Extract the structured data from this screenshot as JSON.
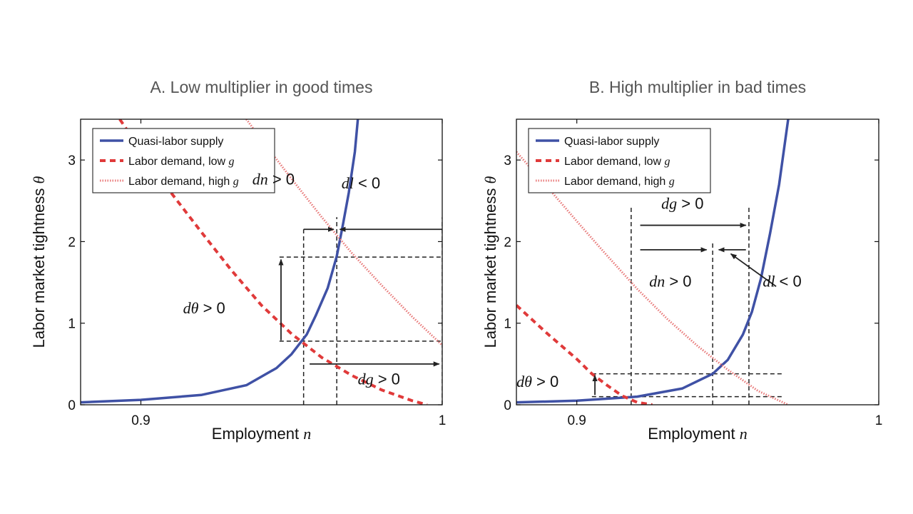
{
  "colors": {
    "supply": "#3f51a5",
    "demand_low": "#e03a3a",
    "demand_high": "#e87a7a",
    "guide": "#222222"
  },
  "chart_data": [
    {
      "type": "line",
      "title": "A. Low multiplier in good times",
      "xlabel": "Employment",
      "xlabel_var": "n",
      "ylabel": "Labor market tightness",
      "ylabel_var": "θ",
      "xlim": [
        0.88,
        1.0
      ],
      "ylim": [
        0,
        3.5
      ],
      "xticks": [
        0.9,
        1
      ],
      "xtick_labels": [
        "0.9",
        "1"
      ],
      "yticks": [
        0,
        1,
        2,
        3
      ],
      "ytick_labels": [
        "0",
        "1",
        "2",
        "3"
      ],
      "legend": {
        "position": "top-left",
        "entries": [
          {
            "text": "Quasi-labor supply",
            "var": "",
            "style": "solid"
          },
          {
            "text": "Labor demand, low ",
            "var": "g",
            "style": "dashed"
          },
          {
            "text": "Labor demand, high ",
            "var": "g",
            "style": "dotted"
          }
        ]
      },
      "series": [
        {
          "id": "supply",
          "points": [
            [
              0.88,
              0.03
            ],
            [
              0.9,
              0.06
            ],
            [
              0.92,
              0.12
            ],
            [
              0.935,
              0.24
            ],
            [
              0.945,
              0.45
            ],
            [
              0.95,
              0.62
            ],
            [
              0.955,
              0.86
            ],
            [
              0.958,
              1.09
            ],
            [
              0.962,
              1.43
            ],
            [
              0.965,
              1.82
            ],
            [
              0.967,
              2.2
            ],
            [
              0.969,
              2.6
            ],
            [
              0.971,
              3.1
            ],
            [
              0.972,
              3.5
            ]
          ]
        },
        {
          "id": "demand_low",
          "points": [
            [
              0.893,
              3.5
            ],
            [
              0.9,
              3.12
            ],
            [
              0.91,
              2.6
            ],
            [
              0.92,
              2.12
            ],
            [
              0.93,
              1.65
            ],
            [
              0.94,
              1.22
            ],
            [
              0.95,
              0.87
            ],
            [
              0.96,
              0.58
            ],
            [
              0.97,
              0.36
            ],
            [
              0.98,
              0.18
            ],
            [
              0.99,
              0.05
            ],
            [
              0.995,
              0.0
            ]
          ]
        },
        {
          "id": "demand_high",
          "points": [
            [
              0.935,
              3.5
            ],
            [
              0.94,
              3.25
            ],
            [
              0.95,
              2.77
            ],
            [
              0.96,
              2.3
            ],
            [
              0.97,
              1.86
            ],
            [
              0.98,
              1.46
            ],
            [
              0.99,
              1.08
            ],
            [
              1.0,
              0.73
            ]
          ]
        }
      ],
      "guides": [
        {
          "type": "v",
          "x": 0.954,
          "y0": 0,
          "y1": 2.15
        },
        {
          "type": "v",
          "x": 0.965,
          "y0": 0,
          "y1": 2.3
        },
        {
          "type": "v",
          "x": 1.0,
          "y0": 0,
          "y1": 2.3
        },
        {
          "type": "h",
          "y": 1.81,
          "x0": 0.946,
          "x1": 1.0
        },
        {
          "type": "h",
          "y": 0.78,
          "x0": 0.946,
          "x1": 1.0
        }
      ],
      "arrows": [
        {
          "x0": 0.954,
          "y0": 2.15,
          "x1": 0.964,
          "y1": 2.15
        },
        {
          "x0": 1.0,
          "y0": 2.15,
          "x1": 0.966,
          "y1": 2.15
        },
        {
          "x0": 0.9465,
          "y0": 0.79,
          "x1": 0.9465,
          "y1": 1.78
        },
        {
          "x0": 0.956,
          "y0": 0.5,
          "x1": 0.999,
          "y1": 0.5
        }
      ],
      "annotations": [
        {
          "var": "dn",
          "rel": " > 0",
          "x": 0.944,
          "y": 2.7
        },
        {
          "var": "dl",
          "rel": " < 0",
          "x": 0.973,
          "y": 2.65
        },
        {
          "var": "dθ",
          "rel": " > 0",
          "x": 0.921,
          "y": 1.12
        },
        {
          "var": "dg",
          "rel": " > 0",
          "x": 0.979,
          "y": 0.25
        }
      ]
    },
    {
      "type": "line",
      "title": "B. High multiplier in bad times",
      "xlabel": "Employment",
      "xlabel_var": "n",
      "ylabel": "Labor market tightness",
      "ylabel_var": "θ",
      "xlim": [
        0.88,
        1.0
      ],
      "ylim": [
        0,
        3.5
      ],
      "xticks": [
        0.9,
        1
      ],
      "xtick_labels": [
        "0.9",
        "1"
      ],
      "yticks": [
        0,
        1,
        2,
        3
      ],
      "ytick_labels": [
        "0",
        "1",
        "2",
        "3"
      ],
      "legend": {
        "position": "top-left",
        "entries": [
          {
            "text": "Quasi-labor supply",
            "var": "",
            "style": "solid"
          },
          {
            "text": "Labor demand, low ",
            "var": "g",
            "style": "dashed"
          },
          {
            "text": "Labor demand, high ",
            "var": "g",
            "style": "dotted"
          }
        ]
      },
      "series": [
        {
          "id": "supply",
          "points": [
            [
              0.88,
              0.03
            ],
            [
              0.9,
              0.05
            ],
            [
              0.92,
              0.1
            ],
            [
              0.935,
              0.2
            ],
            [
              0.945,
              0.38
            ],
            [
              0.95,
              0.55
            ],
            [
              0.955,
              0.86
            ],
            [
              0.958,
              1.14
            ],
            [
              0.961,
              1.55
            ],
            [
              0.964,
              2.1
            ],
            [
              0.967,
              2.7
            ],
            [
              0.97,
              3.5
            ]
          ]
        },
        {
          "id": "demand_low",
          "points": [
            [
              0.88,
              1.22
            ],
            [
              0.89,
              0.88
            ],
            [
              0.9,
              0.56
            ],
            [
              0.905,
              0.38
            ],
            [
              0.91,
              0.24
            ],
            [
              0.915,
              0.11
            ],
            [
              0.92,
              0.03
            ],
            [
              0.925,
              0.0
            ]
          ]
        },
        {
          "id": "demand_high",
          "points": [
            [
              0.88,
              3.1
            ],
            [
              0.89,
              2.68
            ],
            [
              0.9,
              2.25
            ],
            [
              0.91,
              1.83
            ],
            [
              0.92,
              1.42
            ],
            [
              0.93,
              1.05
            ],
            [
              0.94,
              0.72
            ],
            [
              0.95,
              0.43
            ],
            [
              0.96,
              0.17
            ],
            [
              0.97,
              0.0
            ]
          ]
        }
      ],
      "guides": [
        {
          "type": "v",
          "x": 0.918,
          "y0": 0,
          "y1": 2.45
        },
        {
          "type": "v",
          "x": 0.945,
          "y0": 0,
          "y1": 2.0
        },
        {
          "type": "v",
          "x": 0.957,
          "y0": 0,
          "y1": 2.45
        },
        {
          "type": "h",
          "y": 0.38,
          "x0": 0.905,
          "x1": 0.968
        },
        {
          "type": "h",
          "y": 0.1,
          "x0": 0.905,
          "x1": 0.968
        }
      ],
      "arrows": [
        {
          "x0": 0.921,
          "y0": 2.2,
          "x1": 0.956,
          "y1": 2.2
        },
        {
          "x0": 0.921,
          "y0": 1.9,
          "x1": 0.943,
          "y1": 1.9
        },
        {
          "x0": 0.956,
          "y0": 1.9,
          "x1": 0.947,
          "y1": 1.9
        },
        {
          "x0": 0.966,
          "y0": 1.45,
          "x1": 0.951,
          "y1": 1.85
        },
        {
          "x0": 0.906,
          "y0": 0.12,
          "x1": 0.906,
          "y1": 0.36
        }
      ],
      "annotations": [
        {
          "var": "dg",
          "rel": " > 0",
          "x": 0.935,
          "y": 2.4
        },
        {
          "var": "dn",
          "rel": " > 0",
          "x": 0.931,
          "y": 1.45
        },
        {
          "var": "dl",
          "rel": " < 0",
          "x": 0.968,
          "y": 1.45
        },
        {
          "var": "dθ",
          "rel": " > 0",
          "x": 0.887,
          "y": 0.22
        }
      ]
    }
  ]
}
